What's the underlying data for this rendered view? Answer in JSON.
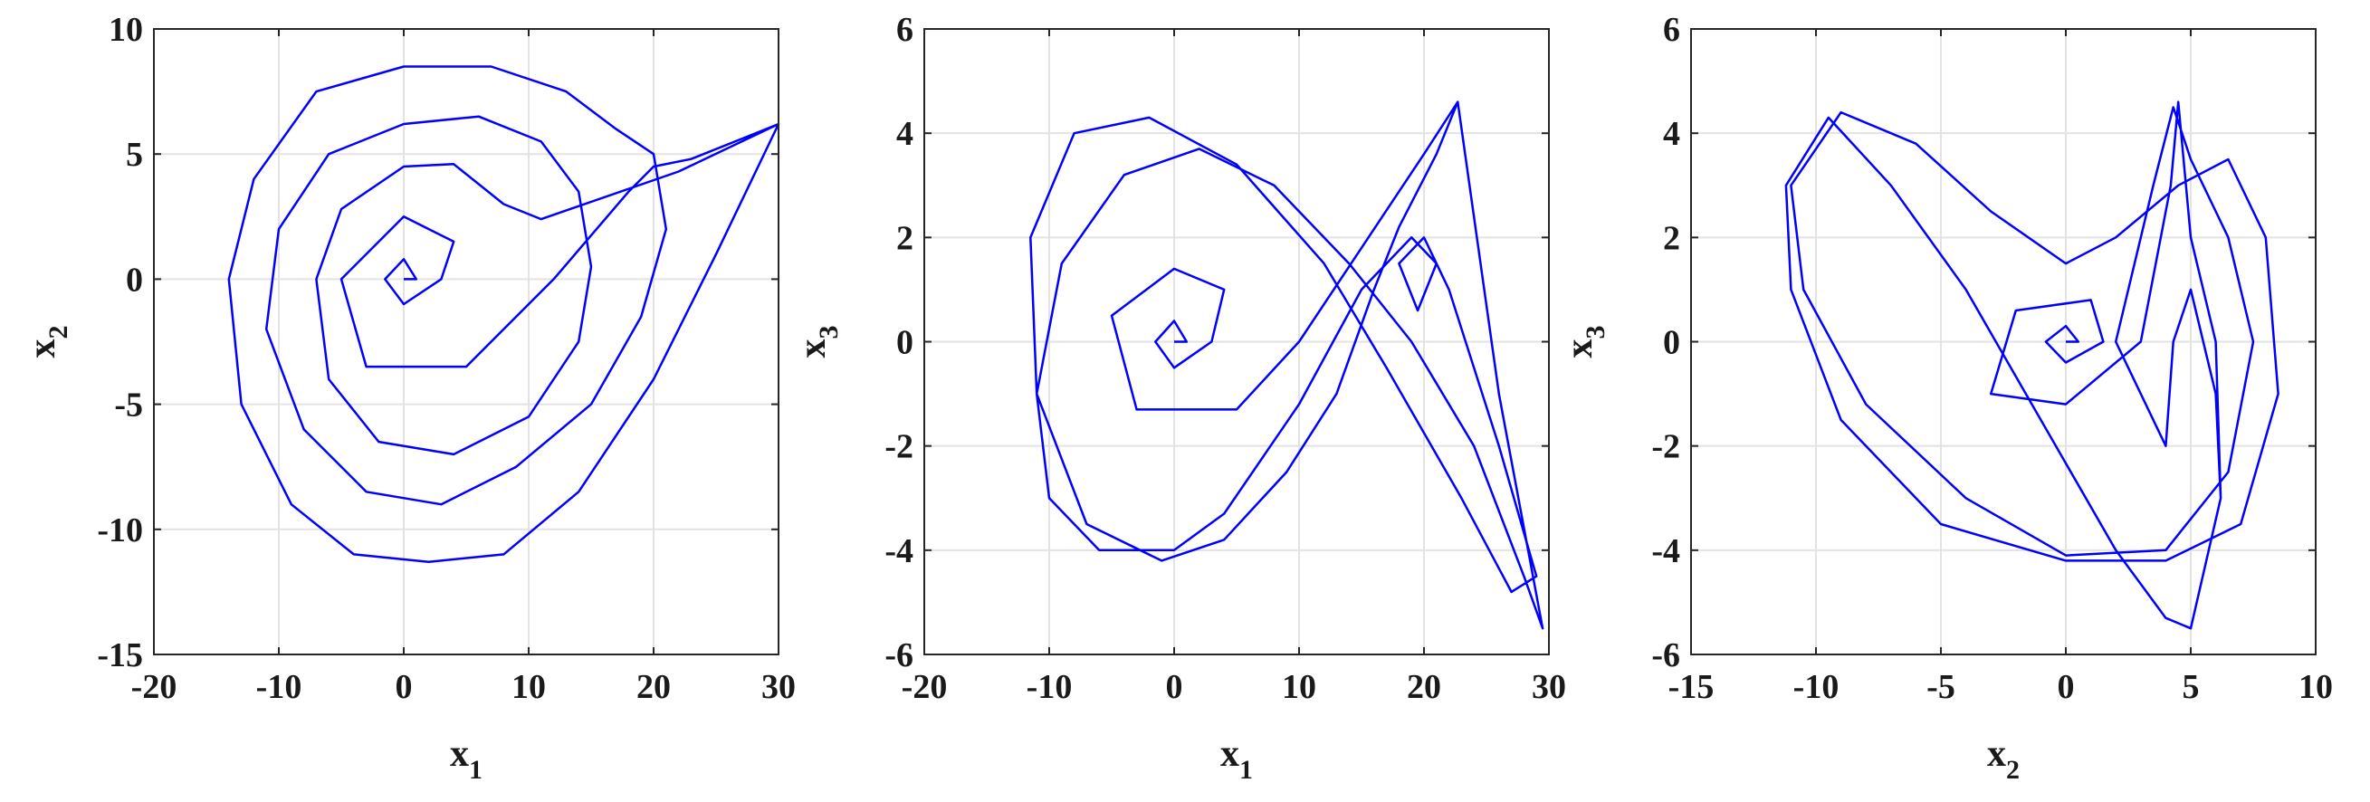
{
  "chart_data": [
    {
      "type": "line",
      "title": "",
      "xlabel": {
        "base": "x",
        "sub": "1"
      },
      "ylabel": {
        "base": "x",
        "sub": "2"
      },
      "xlim": [
        -20,
        30
      ],
      "ylim": [
        -15,
        10
      ],
      "xticks": [
        -20,
        -10,
        0,
        10,
        20,
        30
      ],
      "yticks": [
        -15,
        -10,
        -5,
        0,
        5,
        10
      ],
      "grid": true,
      "series_color": "#0000ff",
      "series": [
        {
          "x": [
            0,
            1,
            0,
            -1.5,
            0,
            3,
            4,
            0,
            -5,
            -3,
            5,
            12,
            18,
            20,
            23,
            28,
            30,
            25,
            20,
            14,
            8,
            2,
            -4,
            -9,
            -13,
            -14,
            -12,
            -7,
            0,
            7,
            13,
            17,
            20,
            21,
            19,
            15,
            9,
            3,
            -3,
            -8,
            -11,
            -10,
            -6,
            0,
            6,
            11,
            14,
            15,
            14,
            10,
            4,
            -2,
            -6,
            -7,
            -5,
            0,
            4,
            8,
            11,
            22,
            30
          ],
          "y": [
            0,
            0,
            0.8,
            0,
            -1,
            0,
            1.5,
            2.5,
            0,
            -3.5,
            -3.5,
            0,
            3.5,
            4.5,
            4.8,
            5.8,
            6.2,
            1,
            -4,
            -8.5,
            -11,
            -11.3,
            -11,
            -9,
            -5,
            0,
            4,
            7.5,
            8.5,
            8.5,
            7.5,
            6,
            5,
            2,
            -1.5,
            -5,
            -7.5,
            -9,
            -8.5,
            -6,
            -2,
            2,
            5,
            6.2,
            6.5,
            5.5,
            3.5,
            0.5,
            -2.5,
            -5.5,
            -7,
            -6.5,
            -4,
            0,
            2.8,
            4.5,
            4.6,
            3,
            2.4,
            4.3,
            6.2
          ]
        }
      ]
    },
    {
      "type": "line",
      "title": "",
      "xlabel": {
        "base": "x",
        "sub": "1"
      },
      "ylabel": {
        "base": "x",
        "sub": "3"
      },
      "xlim": [
        -20,
        30
      ],
      "ylim": [
        -6,
        6
      ],
      "xticks": [
        -20,
        -10,
        0,
        10,
        20,
        30
      ],
      "yticks": [
        -6,
        -4,
        -2,
        0,
        2,
        4,
        6
      ],
      "grid": true,
      "series_color": "#0000ff",
      "series": [
        {
          "x": [
            0,
            1,
            0,
            -1.5,
            0,
            3,
            4,
            0,
            -5,
            -3,
            5,
            10,
            15,
            20,
            22.7,
            26,
            29.5,
            28,
            24,
            19,
            14,
            8,
            2,
            -4,
            -9,
            -11,
            -10,
            -6,
            0,
            4,
            10,
            15,
            19,
            21,
            19.5,
            18,
            20,
            22,
            26,
            29,
            27,
            23,
            17,
            12,
            5,
            -2,
            -8,
            -11.5,
            -11,
            -7,
            -1,
            4,
            9,
            13,
            16,
            18,
            21,
            22.7
          ],
          "y": [
            0,
            0,
            0.4,
            0,
            -0.5,
            0,
            1,
            1.4,
            0.5,
            -1.3,
            -1.3,
            0,
            1.8,
            3.6,
            4.6,
            -1,
            -5.5,
            -4.5,
            -2,
            0,
            1.5,
            3,
            3.7,
            3.2,
            1.5,
            -1,
            -3,
            -4,
            -4,
            -3.3,
            -1.2,
            1,
            2,
            1.5,
            0.6,
            1.5,
            2,
            1,
            -2,
            -4.5,
            -4.8,
            -3,
            -0.5,
            1.5,
            3.4,
            4.3,
            4,
            2,
            -1,
            -3.5,
            -4.2,
            -3.8,
            -2.5,
            -1,
            1,
            2.2,
            3.6,
            4.6
          ]
        }
      ]
    },
    {
      "type": "line",
      "title": "",
      "xlabel": {
        "base": "x",
        "sub": "2"
      },
      "ylabel": {
        "base": "x",
        "sub": "3"
      },
      "xlim": [
        -15,
        10
      ],
      "ylim": [
        -6,
        6
      ],
      "xticks": [
        -15,
        -10,
        -5,
        0,
        5,
        10
      ],
      "yticks": [
        -6,
        -4,
        -2,
        0,
        2,
        4,
        6
      ],
      "grid": true,
      "series_color": "#0000ff",
      "series": [
        {
          "x": [
            0,
            0.5,
            0,
            -0.8,
            0,
            1.5,
            1,
            -2,
            -3,
            0,
            3,
            4.2,
            4.5,
            5,
            6,
            6.2,
            5,
            4,
            2,
            -1,
            -4,
            -7,
            -9.5,
            -11.2,
            -11,
            -9,
            -5,
            0,
            4,
            7,
            8.5,
            8,
            6.5,
            4.5,
            2,
            0,
            -3,
            -6,
            -9,
            -11,
            -10.5,
            -8,
            -4,
            0,
            4,
            6.5,
            7.5,
            6.5,
            5,
            4.3,
            3.5,
            2,
            4,
            4.3,
            5,
            6,
            6.2
          ],
          "y": [
            0,
            0,
            0.3,
            0,
            -0.4,
            0,
            0.8,
            0.6,
            -1,
            -1.2,
            0,
            3,
            4.6,
            2,
            0,
            -3,
            -5.5,
            -5.3,
            -4,
            -1.5,
            1,
            3,
            4.3,
            3,
            1,
            -1.5,
            -3.5,
            -4.2,
            -4.2,
            -3.5,
            -1,
            2,
            3.5,
            3,
            2,
            1.5,
            2.5,
            3.8,
            4.4,
            3,
            1,
            -1.2,
            -3,
            -4.1,
            -4,
            -2.5,
            0,
            2,
            3.5,
            4.5,
            3,
            0,
            -2,
            0,
            1,
            -1,
            -3
          ]
        }
      ]
    }
  ]
}
